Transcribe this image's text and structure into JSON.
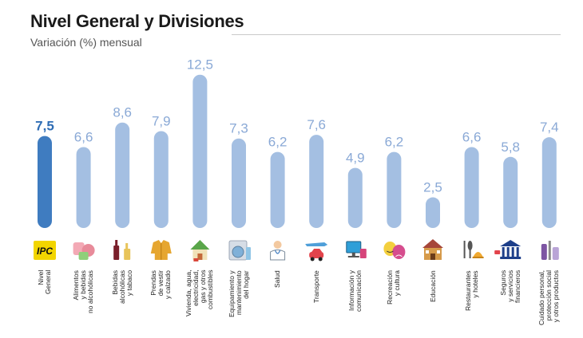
{
  "header": {
    "title": "Nivel General y Divisiones",
    "subtitle": "Variación (%) mensual"
  },
  "colors": {
    "highlight_bar": "#3f7cc0",
    "bar": "#a4bfe2",
    "highlight_value": "#2f6db5",
    "value": "#8aa9d6"
  },
  "chart_data": {
    "type": "bar",
    "title": "Nivel General y Divisiones",
    "subtitle": "Variación (%) mensual",
    "categories": [
      "Nivel General",
      "Alimentos y bebidas no alcohólicas",
      "Bebidas alcohólicas y tabaco",
      "Prendas de vestir y calzado",
      "Vivienda, agua, electricidad, gas y otros combustibles",
      "Equipamiento y mantenimiento del hogar",
      "Salud",
      "Transporte",
      "Información y comunicación",
      "Recreación y cultura",
      "Educación",
      "Restaurantes y hoteles",
      "Seguros y servicios financieros",
      "Cuidado personal, protección social y otros productos"
    ],
    "values": [
      7.5,
      6.6,
      8.6,
      7.9,
      12.5,
      7.3,
      6.2,
      7.6,
      4.9,
      6.2,
      2.5,
      6.6,
      5.8,
      7.4
    ],
    "value_labels": [
      "7,5",
      "6,6",
      "8,6",
      "7,9",
      "12,5",
      "7,3",
      "6,2",
      "7,6",
      "4,9",
      "6,2",
      "2,5",
      "6,6",
      "5,8",
      "7,4"
    ],
    "category_labels": [
      [
        "Nivel",
        "General"
      ],
      [
        "Alimentos",
        "y bebidas",
        "no alcohólicas"
      ],
      [
        "Bebidas",
        "alcohólicas",
        "y tabaco"
      ],
      [
        "Prendas",
        "de vestir",
        "y calzado"
      ],
      [
        "Vivienda, agua,",
        "electricidad,",
        "gas y otros",
        "combustibles"
      ],
      [
        "Equipamiento y",
        "mantenimiento",
        "del hogar"
      ],
      [
        "Salud"
      ],
      [
        "Transporte"
      ],
      [
        "Información y",
        "comunicación"
      ],
      [
        "Recreación",
        "y cultura"
      ],
      [
        "Educación"
      ],
      [
        "Restaurantes",
        "y hoteles"
      ],
      [
        "Seguros",
        "y servicios",
        "financieros"
      ],
      [
        "Cuidado personal,",
        "protección social",
        "y otros productos"
      ]
    ],
    "icons": [
      "ipc-logo-icon",
      "food-icon",
      "bottles-icon",
      "jacket-icon",
      "house-icon",
      "washing-machine-icon",
      "doctor-icon",
      "car-plane-icon",
      "computer-icon",
      "theater-masks-icon",
      "school-icon",
      "cutlery-icon",
      "bank-icon",
      "personal-care-icon"
    ],
    "ipc_logo_text": "IPC",
    "highlight_index": 0,
    "ylim": [
      0,
      13
    ],
    "grid": false,
    "legend": "none"
  }
}
